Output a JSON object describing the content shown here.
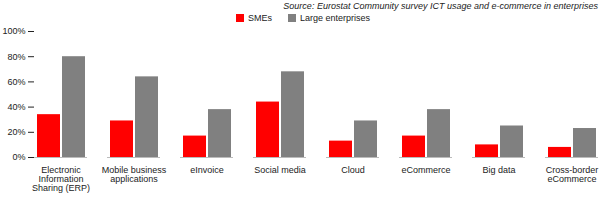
{
  "chart_data": {
    "type": "bar",
    "source": "Source: Eurostat Community  survey ICT usage and e-commerce in enterprises",
    "categories": [
      "Electronic Information Sharing (ERP)",
      "Mobile business applications",
      "eInvoice",
      "Social media",
      "Cloud",
      "eCommerce",
      "Big data",
      "Cross-border eCommerce"
    ],
    "series": [
      {
        "name": "SMEs",
        "color": "#ff0000",
        "values": [
          34,
          29,
          17,
          44,
          13,
          17,
          10,
          8
        ]
      },
      {
        "name": "Large enterprises",
        "color": "#808080",
        "values": [
          80,
          64,
          38,
          68,
          29,
          38,
          25,
          23
        ]
      }
    ],
    "ylim": [
      0,
      100
    ],
    "yticks": [
      {
        "value": 0,
        "label": "0%"
      },
      {
        "value": 20,
        "label": "20%"
      },
      {
        "value": 40,
        "label": "40%"
      },
      {
        "value": 60,
        "label": "60%"
      },
      {
        "value": 80,
        "label": "80%"
      },
      {
        "value": 100,
        "label": "100%"
      }
    ],
    "grid": false,
    "legend": "top"
  }
}
